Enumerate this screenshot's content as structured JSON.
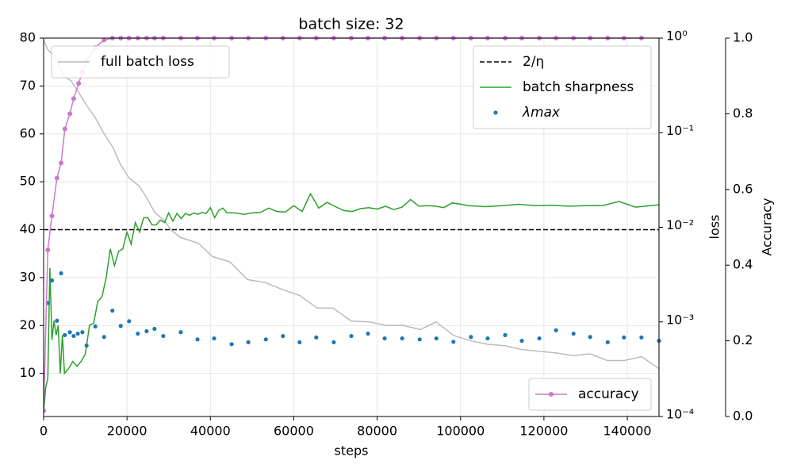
{
  "chart_data": {
    "type": "line",
    "title": "batch size: 32",
    "xlabel": "steps",
    "y2label": "loss",
    "y3label": "Accuracy",
    "xlim": [
      0,
      147600
    ],
    "xticks": [
      0,
      20000,
      40000,
      60000,
      80000,
      100000,
      120000,
      140000
    ],
    "ylim": [
      1,
      80
    ],
    "yticks": [
      10,
      20,
      30,
      40,
      50,
      60,
      70,
      80
    ],
    "y2lim": [
      0.0001,
      1
    ],
    "y2scale": "log",
    "y2ticks": [
      {
        "value": 1,
        "label": "10⁰"
      },
      {
        "value": 0.1,
        "label": "10⁻¹"
      },
      {
        "value": 0.01,
        "label": "10⁻²"
      },
      {
        "value": 0.001,
        "label": "10⁻³"
      },
      {
        "value": 0.0001,
        "label": "10⁻⁴"
      }
    ],
    "y3lim": [
      0,
      1
    ],
    "y3ticks": [
      {
        "value": 0,
        "label": "0.0"
      },
      {
        "value": 0.2,
        "label": "0.2"
      },
      {
        "value": 0.4,
        "label": "0.4"
      },
      {
        "value": 0.6,
        "label": "0.6"
      },
      {
        "value": 0.8,
        "label": "0.8"
      },
      {
        "value": 1,
        "label": "1.0"
      }
    ],
    "grid": true,
    "series": [
      {
        "name": "2/η",
        "style": "dashed",
        "color": "#000000",
        "legend": "upper right",
        "x": [
          0,
          147600
        ],
        "values": [
          40,
          40
        ]
      },
      {
        "name": "batch sharpness",
        "style": "line",
        "color": "#2ca02c",
        "legend": "upper right",
        "x": [
          0,
          500,
          1000,
          1500,
          2000,
          2500,
          3000,
          3500,
          4000,
          4500,
          5000,
          6000,
          7000,
          8000,
          9000,
          10000,
          11000,
          12000,
          13000,
          14000,
          15000,
          16000,
          17000,
          18000,
          19000,
          20000,
          21000,
          22000,
          23000,
          24000,
          25000,
          26000,
          27000,
          28000,
          29000,
          30000,
          31000,
          32000,
          33000,
          34000,
          35000,
          36000,
          37000,
          38000,
          39000,
          40000,
          41000,
          42000,
          43000,
          44000,
          46000,
          48000,
          50000,
          52000,
          54000,
          56000,
          58000,
          60000,
          62000,
          64000,
          66000,
          68000,
          70000,
          72000,
          74000,
          76000,
          78000,
          80000,
          82000,
          84000,
          86000,
          88000,
          90000,
          92000,
          94000,
          96000,
          98000,
          102000,
          106000,
          110000,
          114000,
          118000,
          122000,
          126000,
          130000,
          134000,
          138000,
          142000,
          147600
        ],
        "values": [
          2,
          7,
          9,
          32,
          17,
          21,
          18,
          20,
          10,
          18,
          10,
          11,
          12.5,
          11.5,
          12.5,
          14,
          20,
          20.5,
          25,
          26,
          30,
          36,
          32.5,
          35.5,
          36,
          39.5,
          37,
          41.5,
          39.5,
          42.5,
          42.5,
          41,
          41,
          42,
          41.5,
          43.5,
          41.8,
          43.4,
          42.3,
          43.4,
          43,
          43.5,
          43.2,
          43.6,
          43.4,
          44.6,
          42.5,
          44,
          44.5,
          43.5,
          43.5,
          43.2,
          43.5,
          43.6,
          44.5,
          43.8,
          43.7,
          45,
          43.8,
          47.5,
          44.5,
          45.7,
          44.8,
          44,
          43.8,
          44.4,
          44.6,
          44.3,
          44.9,
          44.2,
          44.7,
          46.3,
          44.9,
          45,
          44.9,
          44.6,
          45.6,
          45,
          44.8,
          45,
          45.3,
          45,
          45.1,
          44.9,
          45,
          45,
          45.9,
          44.7,
          45.2
        ]
      },
      {
        "name": "λmax",
        "style": "scatter",
        "color": "#1f77b4",
        "legend": "upper right",
        "x": [
          0,
          1000,
          2000,
          3200,
          4200,
          5100,
          6300,
          7200,
          8200,
          9300,
          10300,
          12400,
          14500,
          16500,
          18500,
          20500,
          22600,
          24700,
          26600,
          28700,
          32900,
          36900,
          40900,
          45100,
          49100,
          53300,
          57400,
          61400,
          65400,
          69600,
          73800,
          77800,
          81800,
          86000,
          90200,
          94200,
          98300,
          102500,
          106500,
          110700,
          114700,
          118900,
          122900,
          127100,
          131100,
          135300,
          139200,
          143400,
          147600
        ],
        "values": [
          2.2,
          24.7,
          29.4,
          21,
          30.9,
          18,
          18.6,
          17.8,
          18.3,
          18.6,
          15.8,
          19.8,
          17.6,
          23.1,
          19.9,
          20.9,
          18.3,
          18.8,
          19.3,
          17.8,
          18.6,
          17.1,
          17.3,
          16.1,
          16.5,
          17.1,
          17.8,
          16.5,
          17.5,
          16.5,
          17.8,
          18.3,
          17.3,
          17.3,
          17.1,
          17.3,
          16.6,
          17.6,
          17.3,
          18,
          16.8,
          17.3,
          19,
          18.3,
          17.6,
          16.5,
          17.5,
          17.5,
          16.8
        ]
      },
      {
        "name": "full batch loss",
        "style": "line",
        "color": "#bbbbbb",
        "axis": "y2",
        "legend": "upper left",
        "x": [
          0,
          950,
          2900,
          4750,
          6650,
          8560,
          10460,
          12360,
          14650,
          16550,
          18450,
          20540,
          22820,
          24730,
          26630,
          28910,
          30620,
          32900,
          37090,
          40510,
          44700,
          48880,
          53260,
          57250,
          61430,
          65620,
          69420,
          73800,
          78170,
          82170,
          86160,
          90350,
          94150,
          98340,
          102520,
          106520,
          110700,
          114700,
          118880,
          122870,
          127060,
          131050,
          135230,
          139230,
          143410,
          147600
        ],
        "values": [
          0.96,
          0.76,
          0.62,
          0.4,
          0.35,
          0.26,
          0.19,
          0.145,
          0.095,
          0.071,
          0.046,
          0.033,
          0.0276,
          0.0206,
          0.0144,
          0.0118,
          0.0093,
          0.0078,
          0.0068,
          0.0049,
          0.0043,
          0.0028,
          0.0026,
          0.0022,
          0.0019,
          0.0014,
          0.0014,
          0.00102,
          0.001,
          0.00092,
          0.00092,
          0.00083,
          0.001,
          0.00072,
          0.00063,
          0.00058,
          0.00056,
          0.00051,
          0.00049,
          0.00047,
          0.00044,
          0.00046,
          0.00039,
          0.00039,
          0.00043,
          0.00032
        ]
      },
      {
        "name": "accuracy",
        "style": "line-markers",
        "color": "#cc79cc",
        "axis": "y3",
        "legend": "lower right",
        "x": [
          0,
          1000,
          2000,
          3200,
          4200,
          5100,
          6300,
          7200,
          8400,
          9300,
          10300,
          12400,
          14500,
          16500,
          18500,
          20500,
          22600,
          24700,
          26600,
          28700,
          32900,
          36900,
          40900,
          45100,
          49100,
          53300,
          57400,
          61400,
          65400,
          69600,
          73800,
          77800,
          81800,
          86000,
          90200,
          94200,
          98300,
          102500,
          106500,
          110700,
          114700,
          118900,
          122900,
          127100,
          131100,
          135300,
          139200,
          143400
        ],
        "values": [
          0.015,
          0.44,
          0.53,
          0.63,
          0.67,
          0.76,
          0.8,
          0.84,
          0.88,
          0.91,
          0.94,
          0.975,
          0.995,
          1,
          1,
          1,
          1,
          1,
          1,
          1,
          1,
          1,
          1,
          1,
          1,
          1,
          1,
          1,
          1,
          1,
          1,
          1,
          1,
          1,
          1,
          1,
          1,
          1,
          1,
          1,
          1,
          1,
          1,
          1,
          1,
          1,
          1,
          1
        ]
      }
    ]
  }
}
